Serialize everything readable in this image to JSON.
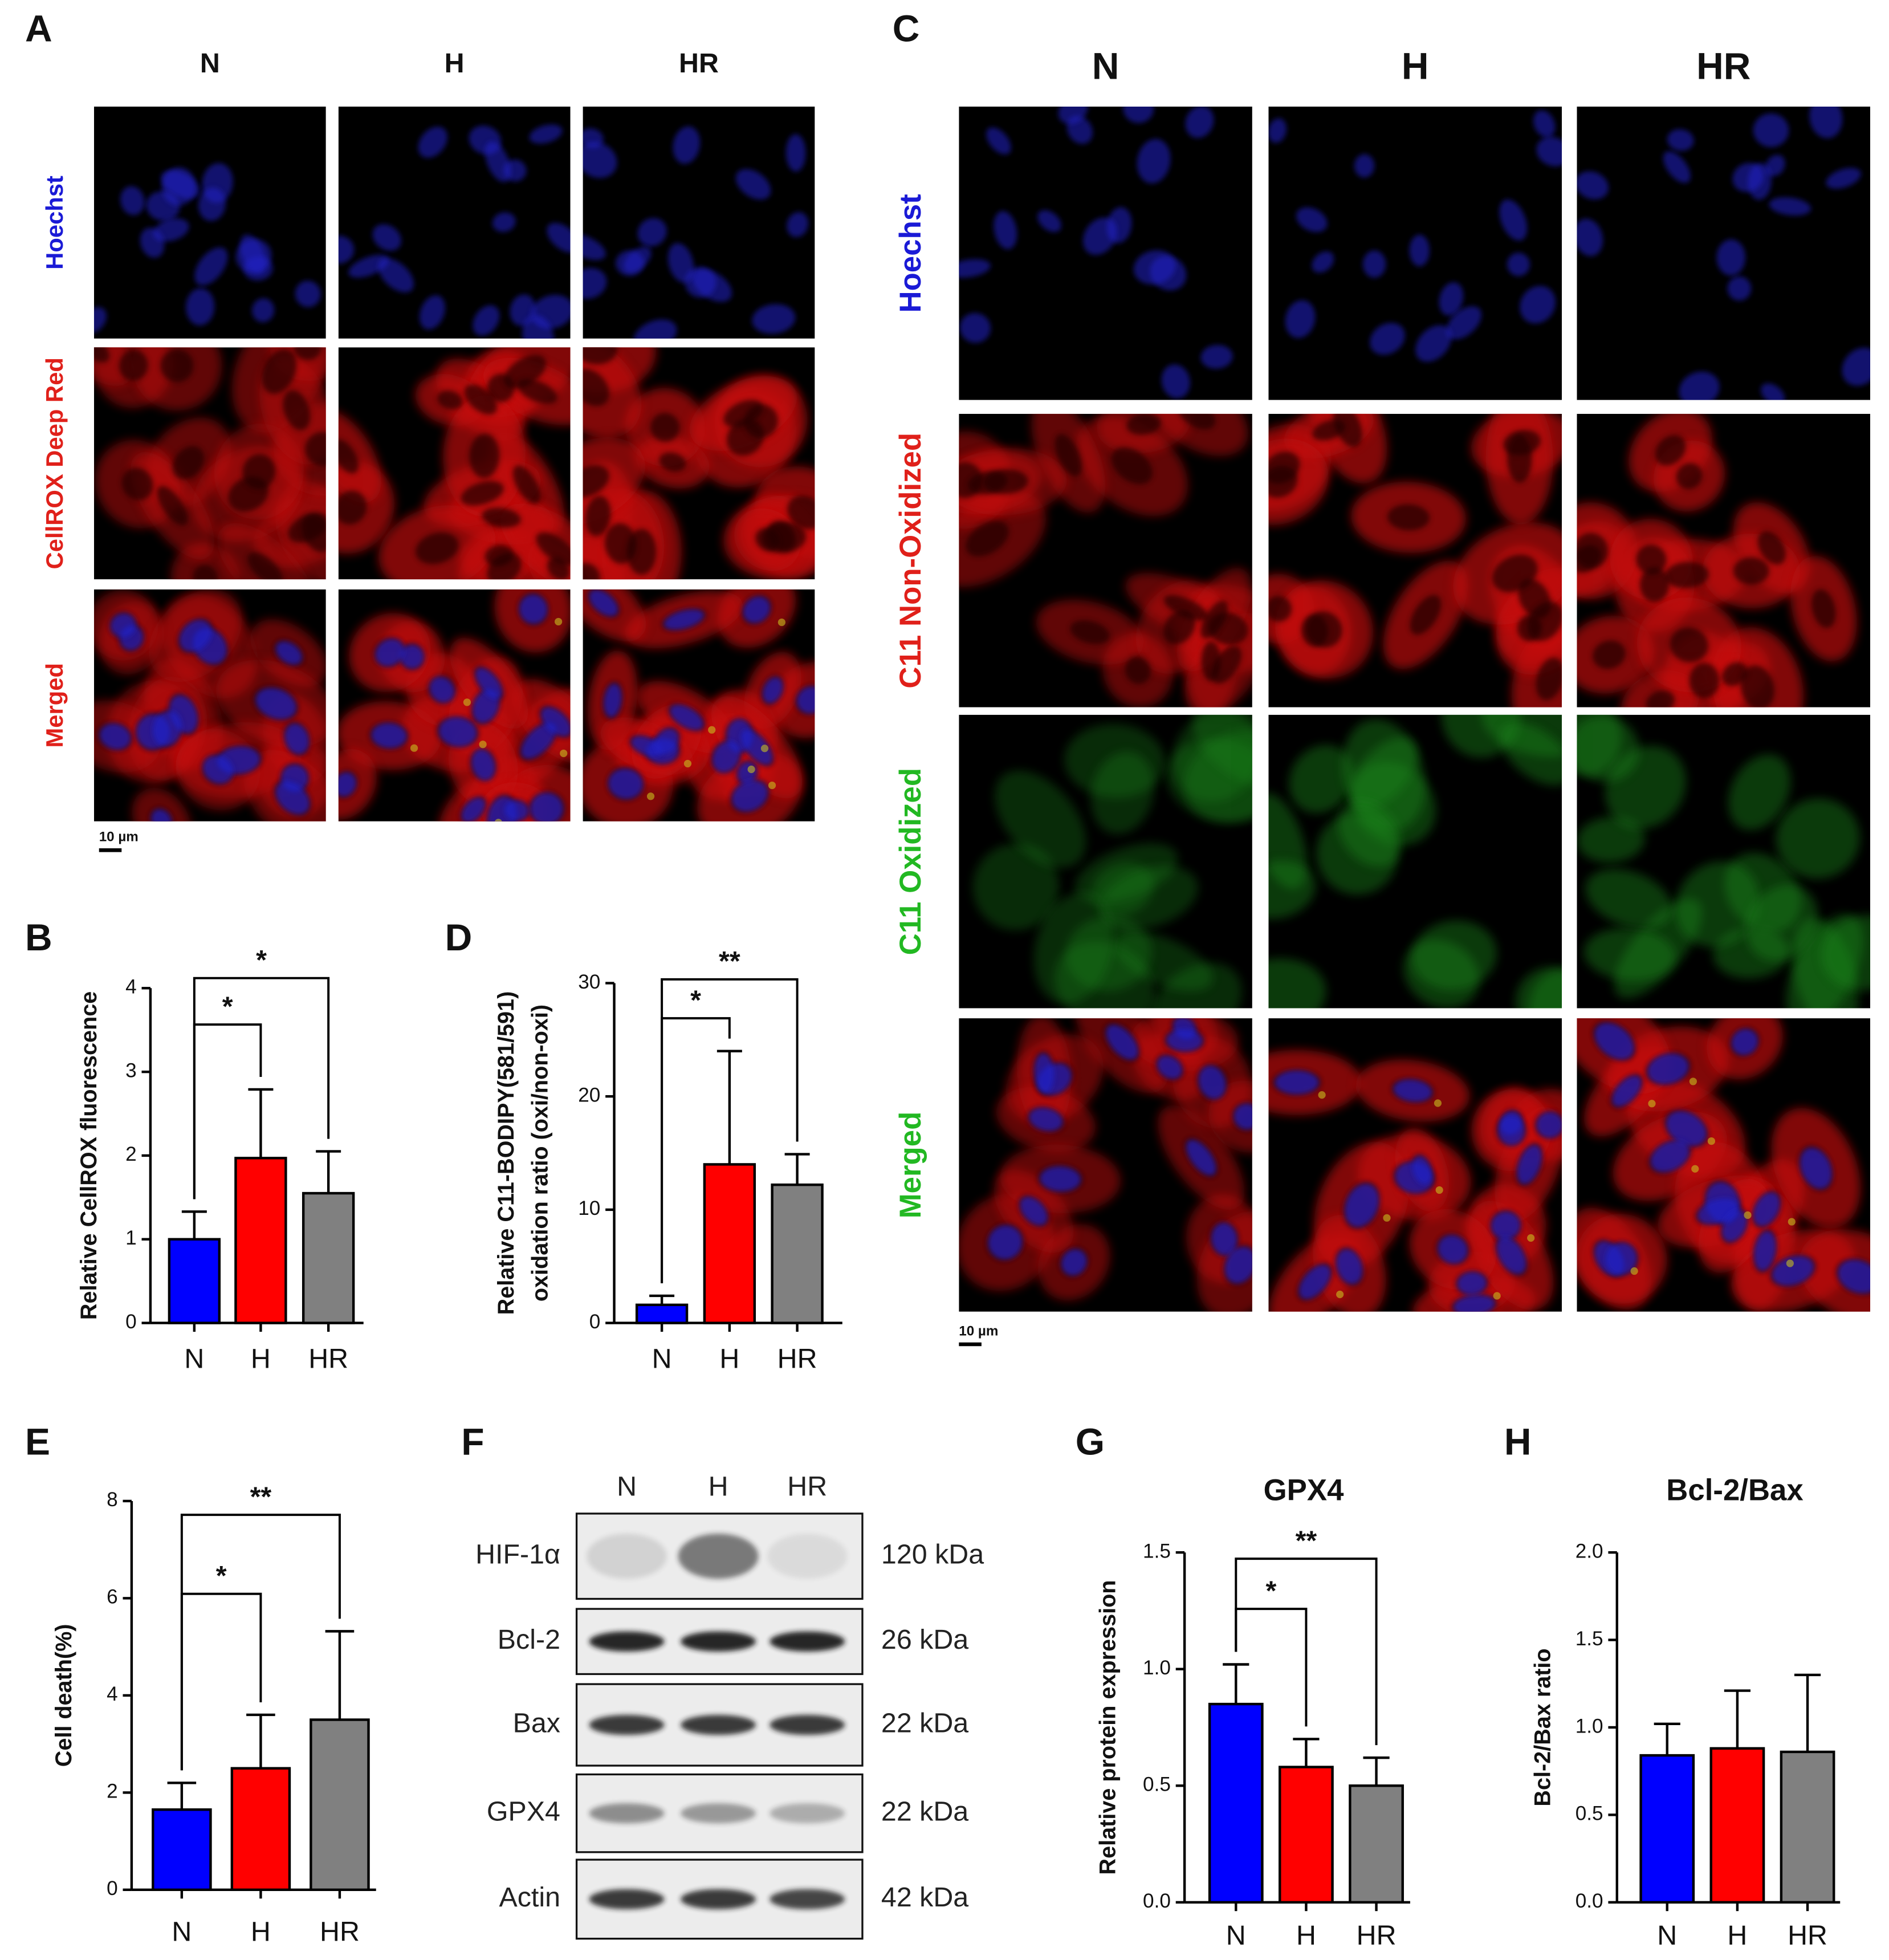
{
  "panels": {
    "A": {
      "letter": "A",
      "columns": [
        "N",
        "H",
        "HR"
      ],
      "rows": [
        {
          "label": "Hoechst",
          "color": "#1a1ad6"
        },
        {
          "label": "CellROX Deep Red",
          "color": "#e0201a"
        },
        {
          "label": "Merged",
          "color": "#e0201a"
        }
      ],
      "scale_bar": "10 µm"
    },
    "C": {
      "letter": "C",
      "columns": [
        "N",
        "H",
        "HR"
      ],
      "rows": [
        {
          "label": "Hoechst",
          "color": "#1a1ad6"
        },
        {
          "label": "C11 Non-Oxidized",
          "color": "#e0201a"
        },
        {
          "label": "C11 Oxidized",
          "color": "#22b822"
        },
        {
          "label": "Merged",
          "color": "#22b822"
        }
      ],
      "scale_bar": "10 µm"
    },
    "F": {
      "letter": "F",
      "columns": [
        "N",
        "H",
        "HR"
      ],
      "rows": [
        {
          "protein": "HIF-1α",
          "size": "120 kDa"
        },
        {
          "protein": "Bcl-2",
          "size": "26 kDa"
        },
        {
          "protein": "Bax",
          "size": "22 kDa"
        },
        {
          "protein": "GPX4",
          "size": "22 kDa"
        },
        {
          "protein": "Actin",
          "size": "42 kDa"
        }
      ]
    }
  },
  "chart_data": [
    {
      "type": "bar",
      "letter": "B",
      "ylabel": "Relative CellROX fluorescence",
      "categories": [
        "N",
        "H",
        "HR"
      ],
      "values": [
        1.0,
        1.97,
        1.55
      ],
      "errors": [
        0.33,
        0.82,
        0.5
      ],
      "colors": [
        "#0000ff",
        "#ff0000",
        "#808080"
      ],
      "ylim": [
        0,
        4
      ],
      "yticks": [
        0,
        1,
        2,
        3,
        4
      ],
      "annotations": [
        {
          "text": "*",
          "pair": [
            "N",
            "H"
          ]
        },
        {
          "text": "*",
          "pair": [
            "N",
            "HR"
          ]
        }
      ]
    },
    {
      "type": "bar",
      "letter": "D",
      "ylabel": [
        "Relative C11-BODIPY(581/591)",
        "oxidation ratio (oxi/non-oxi)"
      ],
      "categories": [
        "N",
        "H",
        "HR"
      ],
      "values": [
        1.6,
        14.0,
        12.2
      ],
      "errors": [
        0.8,
        10.0,
        2.7
      ],
      "colors": [
        "#0000ff",
        "#ff0000",
        "#808080"
      ],
      "ylim": [
        0,
        30
      ],
      "yticks": [
        0,
        10,
        20,
        30
      ],
      "annotations": [
        {
          "text": "*",
          "pair": [
            "N",
            "H"
          ]
        },
        {
          "text": "**",
          "pair": [
            "N",
            "HR"
          ]
        }
      ]
    },
    {
      "type": "bar",
      "letter": "E",
      "ylabel": "Cell death(%)",
      "categories": [
        "N",
        "H",
        "HR"
      ],
      "values": [
        1.65,
        2.5,
        3.5
      ],
      "errors": [
        0.55,
        1.1,
        1.82
      ],
      "colors": [
        "#0000ff",
        "#ff0000",
        "#808080"
      ],
      "ylim": [
        0,
        8
      ],
      "yticks": [
        0,
        2,
        4,
        6,
        8
      ],
      "annotations": [
        {
          "text": "*",
          "pair": [
            "N",
            "H"
          ]
        },
        {
          "text": "**",
          "pair": [
            "N",
            "HR"
          ]
        }
      ]
    },
    {
      "type": "bar",
      "letter": "G",
      "title": "GPX4",
      "ylabel": "Relative protein expression",
      "categories": [
        "N",
        "H",
        "HR"
      ],
      "values": [
        0.85,
        0.58,
        0.5
      ],
      "errors": [
        0.17,
        0.12,
        0.12
      ],
      "colors": [
        "#0000ff",
        "#ff0000",
        "#808080"
      ],
      "ylim": [
        0,
        1.5
      ],
      "yticks": [
        {
          "value": 0,
          "label": "0.0"
        },
        0.5,
        {
          "value": 1,
          "label": "1.0"
        },
        1.5
      ],
      "annotations": [
        {
          "text": "*",
          "pair": [
            "N",
            "H"
          ]
        },
        {
          "text": "**",
          "pair": [
            "N",
            "HR"
          ]
        }
      ]
    },
    {
      "type": "bar",
      "letter": "H",
      "title": "Bcl-2/Bax",
      "ylabel": "Bcl-2/Bax ratio",
      "categories": [
        "N",
        "H",
        "HR"
      ],
      "values": [
        0.84,
        0.88,
        0.86
      ],
      "errors": [
        0.18,
        0.33,
        0.44
      ],
      "colors": [
        "#0000ff",
        "#ff0000",
        "#808080"
      ],
      "ylim": [
        0,
        2
      ],
      "yticks": [
        {
          "value": 0,
          "label": "0.0"
        },
        0.5,
        {
          "value": 1,
          "label": "1.0"
        },
        1.5,
        {
          "value": 2,
          "label": "2.0"
        }
      ]
    }
  ]
}
